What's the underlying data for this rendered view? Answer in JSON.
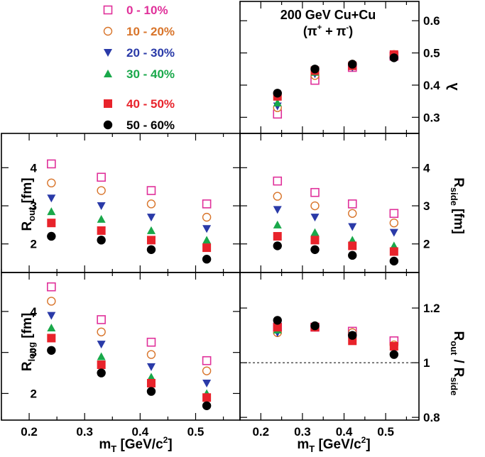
{
  "figure": {
    "title": "200 GeV Cu+Cu",
    "subtitle_main": "(π",
    "subtitle_sup1": "+",
    "subtitle_mid": " + π",
    "subtitle_sup2": "-",
    "subtitle_end": ")"
  },
  "chart_data": [
    {
      "type": "scatter",
      "panel": "lambda",
      "ylabel": "λ",
      "xlim": [
        0.15,
        0.58
      ],
      "ylim": [
        0.25,
        0.66
      ],
      "y_ticks": [
        "0.3",
        "0.4",
        "0.5",
        "0.6"
      ],
      "x": [
        0.24,
        0.33,
        0.42,
        0.52
      ],
      "series": [
        {
          "name": "0 - 10%",
          "values": [
            0.31,
            0.415,
            0.455,
            0.49
          ]
        },
        {
          "name": "10 - 20%",
          "values": [
            0.33,
            0.43,
            0.465,
            0.495
          ]
        },
        {
          "name": "20 - 30%",
          "values": [
            0.335,
            0.435,
            0.455,
            0.49
          ]
        },
        {
          "name": "30 - 40%",
          "values": [
            0.345,
            0.44,
            0.46,
            0.49
          ]
        },
        {
          "name": "40 - 50%",
          "values": [
            0.365,
            0.445,
            0.46,
            0.495
          ]
        },
        {
          "name": "50 - 60%",
          "values": [
            0.375,
            0.45,
            0.465,
            0.485
          ]
        }
      ]
    },
    {
      "type": "scatter",
      "panel": "R_out",
      "ylabel": "R_out [fm]",
      "xlim": [
        0.15,
        0.58
      ],
      "ylim": [
        1.25,
        4.9
      ],
      "y_ticks": [
        "2",
        "3",
        "4"
      ],
      "x": [
        0.24,
        0.33,
        0.42,
        0.52
      ],
      "series": [
        {
          "name": "0 - 10%",
          "values": [
            4.1,
            3.75,
            3.4,
            3.05
          ]
        },
        {
          "name": "10 - 20%",
          "values": [
            3.6,
            3.4,
            3.05,
            2.7
          ]
        },
        {
          "name": "20 - 30%",
          "values": [
            3.2,
            3.0,
            2.7,
            2.4
          ]
        },
        {
          "name": "30 - 40%",
          "values": [
            2.85,
            2.65,
            2.35,
            2.1
          ]
        },
        {
          "name": "40 - 50%",
          "values": [
            2.55,
            2.35,
            2.1,
            1.9
          ]
        },
        {
          "name": "50 - 60%",
          "values": [
            2.2,
            2.1,
            1.85,
            1.6
          ]
        }
      ]
    },
    {
      "type": "scatter",
      "panel": "R_side",
      "ylabel": "R_side [fm]",
      "xlim": [
        0.15,
        0.58
      ],
      "ylim": [
        1.25,
        4.9
      ],
      "y_ticks": [
        "2",
        "3",
        "4"
      ],
      "x": [
        0.24,
        0.33,
        0.42,
        0.52
      ],
      "series": [
        {
          "name": "0 - 10%",
          "values": [
            3.65,
            3.35,
            3.05,
            2.8
          ]
        },
        {
          "name": "10 - 20%",
          "values": [
            3.25,
            3.0,
            2.8,
            2.55
          ]
        },
        {
          "name": "20 - 30%",
          "values": [
            2.9,
            2.7,
            2.45,
            2.3
          ]
        },
        {
          "name": "30 - 40%",
          "values": [
            2.5,
            2.3,
            2.1,
            1.95
          ]
        },
        {
          "name": "40 - 50%",
          "values": [
            2.2,
            2.1,
            1.95,
            1.8
          ]
        },
        {
          "name": "50 - 60%",
          "values": [
            1.95,
            1.85,
            1.7,
            1.55
          ]
        }
      ]
    },
    {
      "type": "scatter",
      "panel": "R_long",
      "ylabel": "R_long [fm]",
      "xlabel": "m_T [GeV/c^2]",
      "xlim": [
        0.15,
        0.58
      ],
      "ylim": [
        1.35,
        4.95
      ],
      "x_ticks": [
        "0.2",
        "0.3",
        "0.4",
        "0.5"
      ],
      "y_ticks": [
        "2",
        "3",
        "4"
      ],
      "x": [
        0.24,
        0.33,
        0.42,
        0.52
      ],
      "series": [
        {
          "name": "0 - 10%",
          "values": [
            4.6,
            3.8,
            3.25,
            2.8
          ]
        },
        {
          "name": "10 - 20%",
          "values": [
            4.25,
            3.5,
            2.95,
            2.55
          ]
        },
        {
          "name": "20 - 30%",
          "values": [
            3.9,
            3.2,
            2.65,
            2.25
          ]
        },
        {
          "name": "30 - 40%",
          "values": [
            3.6,
            2.9,
            2.4,
            2.0
          ]
        },
        {
          "name": "40 - 50%",
          "values": [
            3.35,
            2.7,
            2.25,
            1.9
          ]
        },
        {
          "name": "50 - 60%",
          "values": [
            3.05,
            2.5,
            2.05,
            1.7
          ]
        }
      ]
    },
    {
      "type": "scatter",
      "panel": "R_out/R_side",
      "ylabel": "R_out / R_side",
      "xlabel": "m_T [GeV/c^2]",
      "xlim": [
        0.15,
        0.58
      ],
      "ylim": [
        0.79,
        1.33
      ],
      "x_ticks": [
        "0.2",
        "0.3",
        "0.4",
        "0.5"
      ],
      "y_ticks": [
        "0.8",
        "1",
        "1.2"
      ],
      "reference_line": 1.0,
      "x": [
        0.24,
        0.33,
        0.42,
        0.52
      ],
      "series": [
        {
          "name": "0 - 10%",
          "values": [
            1.13,
            1.13,
            1.115,
            1.08
          ]
        },
        {
          "name": "10 - 20%",
          "values": [
            1.11,
            1.13,
            1.11,
            1.065
          ]
        },
        {
          "name": "20 - 30%",
          "values": [
            1.11,
            1.13,
            1.1,
            1.06
          ]
        },
        {
          "name": "30 - 40%",
          "values": [
            1.12,
            1.135,
            1.095,
            1.06
          ]
        },
        {
          "name": "40 - 50%",
          "values": [
            1.13,
            1.13,
            1.08,
            1.06
          ]
        },
        {
          "name": "50 - 60%",
          "values": [
            1.155,
            1.135,
            1.1,
            1.03
          ]
        }
      ]
    }
  ],
  "legend": [
    {
      "label": "0 - 10%",
      "marker": "open-square",
      "color": "#e0309a"
    },
    {
      "label": "10 - 20%",
      "marker": "open-circle",
      "color": "#d8742a"
    },
    {
      "label": "20 - 30%",
      "marker": "down-triangle",
      "color": "#2a3aa8"
    },
    {
      "label": "30 - 40%",
      "marker": "up-triangle",
      "color": "#19a84a"
    },
    {
      "label": "40 - 50%",
      "marker": "filled-square",
      "color": "#e8232b"
    },
    {
      "label": "50 - 60%",
      "marker": "filled-circle",
      "color": "#000000"
    }
  ],
  "labels": {
    "lambda": "λ",
    "rout_R": "R",
    "rout_sub": "out",
    "rout_unit": " [fm]",
    "rside_R": "R",
    "rside_sub": "side",
    "rside_unit": "[fm]",
    "rlong_R": "R",
    "rlong_sub": "long",
    "rlong_unit": " [fm]",
    "ratio_num_R": "R",
    "ratio_num_sub": "out",
    "ratio_slash": "/",
    "ratio_den_R": "R",
    "ratio_den_sub": "side",
    "mt_m": "m",
    "mt_sub": "T",
    "mt_unit": " [GeV/c",
    "mt_sup": "2",
    "mt_close": "]"
  }
}
